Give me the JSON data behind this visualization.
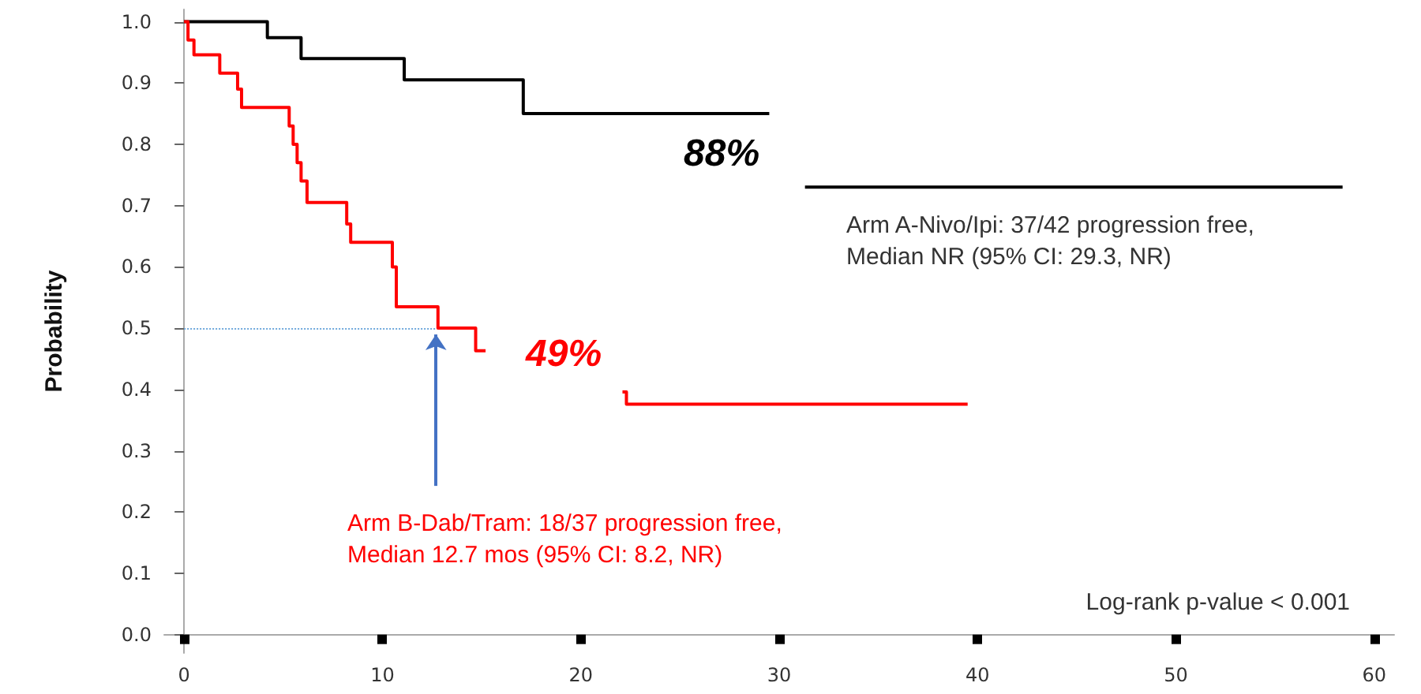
{
  "chart_data": {
    "type": "step",
    "ylabel": "Probability",
    "series": [
      {
        "color": "#000000",
        "x": [
          0,
          4.2,
          5.9,
          11.1,
          17.1,
          29.4,
          29.5,
          31.3,
          58.4
        ],
        "values": [
          1.0,
          0.974,
          0.94,
          0.905,
          0.85,
          0.85,
          null,
          0.73,
          0.73
        ]
      },
      {
        "color": "#ff0000",
        "x": [
          0,
          0.2,
          0.5,
          1.8,
          2.7,
          2.9,
          5.3,
          5.5,
          5.7,
          5.9,
          6.2,
          8.2,
          8.4,
          10.5,
          10.7,
          12.8,
          14.7,
          15.1,
          15.2,
          22.1,
          22.3,
          39.5
        ],
        "values": [
          1.0,
          0.97,
          0.946,
          0.916,
          0.89,
          0.86,
          0.83,
          0.8,
          0.77,
          0.74,
          0.705,
          0.67,
          0.64,
          0.6,
          0.535,
          0.5,
          0.463,
          0.463,
          null,
          0.396,
          0.376,
          0.376
        ]
      }
    ],
    "xlim": [
      -1,
      61
    ],
    "xticks": [
      0,
      10,
      20,
      30,
      40,
      50,
      60
    ],
    "ylim": [
      -0.03,
      1.02
    ],
    "yticks": [
      {
        "value": 0,
        "label": "0.0"
      },
      {
        "value": 0.1,
        "label": "0.1"
      },
      {
        "value": 0.2,
        "label": "0.2"
      },
      {
        "value": 0.3,
        "label": "0.3"
      },
      {
        "value": 0.4,
        "label": "0.4"
      },
      {
        "value": 0.5,
        "label": "0.5"
      },
      {
        "value": 0.6,
        "label": "0.6"
      },
      {
        "value": 0.7,
        "label": "0.7"
      },
      {
        "value": 0.8,
        "label": "0.8"
      },
      {
        "value": 0.9,
        "label": "0.9"
      },
      {
        "value": 1,
        "label": "1.0"
      }
    ],
    "ref_lines": [
      {
        "axis": "y",
        "value": 0.5,
        "color": "#6fa8dc",
        "line_style": "dotted"
      }
    ],
    "annotations": [
      "88%",
      "49%",
      "Arm A-Nivo/Ipi: 37/42 progression free,\nMedian NR (95% CI: 29.3, NR)",
      {
        "text": "Arm B-Dab/Tram: 18/37 progression free,\nMedian 12.7 mos (95% CI: 8.2, NR)",
        "x": 12.7,
        "y": 0.5
      },
      "Log-rank p-value < 0.001"
    ],
    "marker": "none",
    "line_style": "solid"
  }
}
